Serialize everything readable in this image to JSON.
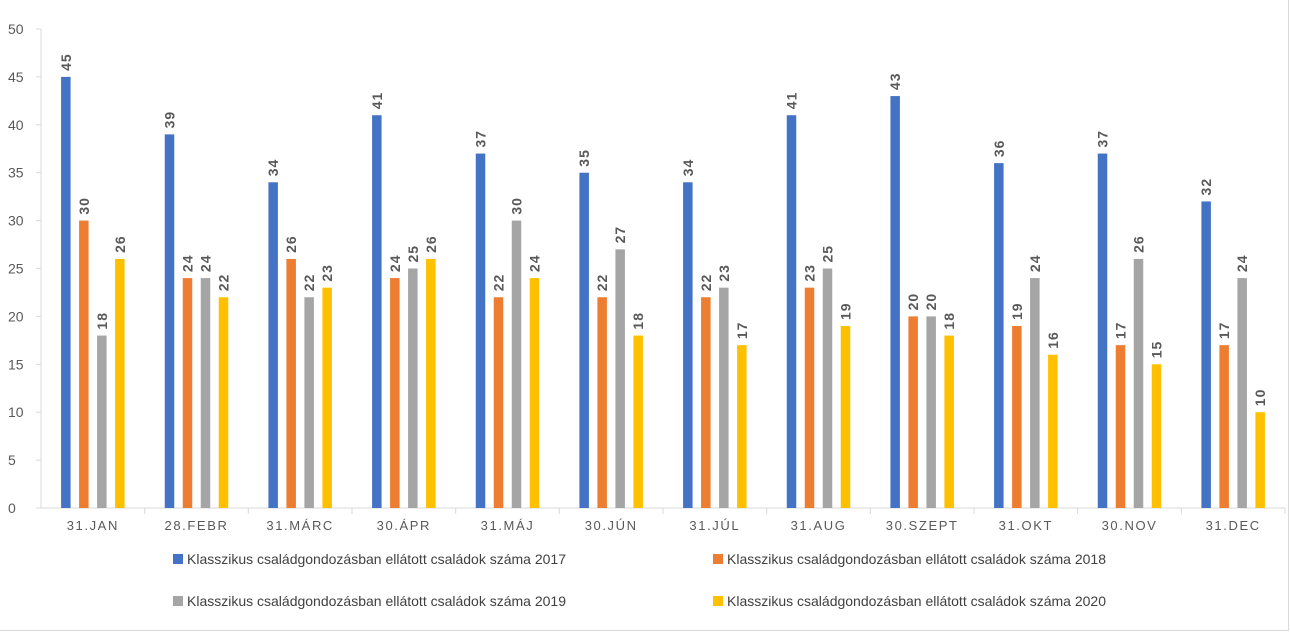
{
  "chart_data": {
    "type": "bar",
    "title": "",
    "xlabel": "",
    "ylabel": "",
    "ylim": [
      0,
      50
    ],
    "yticks": [
      0,
      5,
      10,
      15,
      20,
      25,
      30,
      35,
      40,
      45,
      50
    ],
    "grid": false,
    "legend_position": "bottom",
    "categories": [
      "31.JAN",
      "28.FEBR",
      "31.MÁRC",
      "30.ÁPR",
      "31.MÁJ",
      "30.JÚN",
      "31.JÚL",
      "31.AUG",
      "30.SZEPT",
      "31.OKT",
      "30.NOV",
      "31.DEC"
    ],
    "series": [
      {
        "name": "Klasszikus családgondozásban ellátott családok száma 2017",
        "color": "#4472c4",
        "values": [
          45,
          39,
          34,
          41,
          37,
          35,
          34,
          41,
          43,
          36,
          37,
          32
        ]
      },
      {
        "name": "Klasszikus családgondozásban ellátott családok száma 2018",
        "color": "#ed7d31",
        "values": [
          30,
          24,
          26,
          24,
          22,
          22,
          22,
          23,
          20,
          19,
          17,
          17
        ]
      },
      {
        "name": "Klasszikus családgondozásban ellátott családok száma 2019",
        "color": "#a5a5a5",
        "values": [
          18,
          24,
          22,
          25,
          30,
          27,
          23,
          25,
          20,
          24,
          26,
          24
        ]
      },
      {
        "name": "Klasszikus családgondozásban ellátott családok száma 2020",
        "color": "#ffc000",
        "values": [
          26,
          22,
          23,
          26,
          24,
          18,
          17,
          19,
          18,
          16,
          15,
          10
        ]
      }
    ]
  }
}
